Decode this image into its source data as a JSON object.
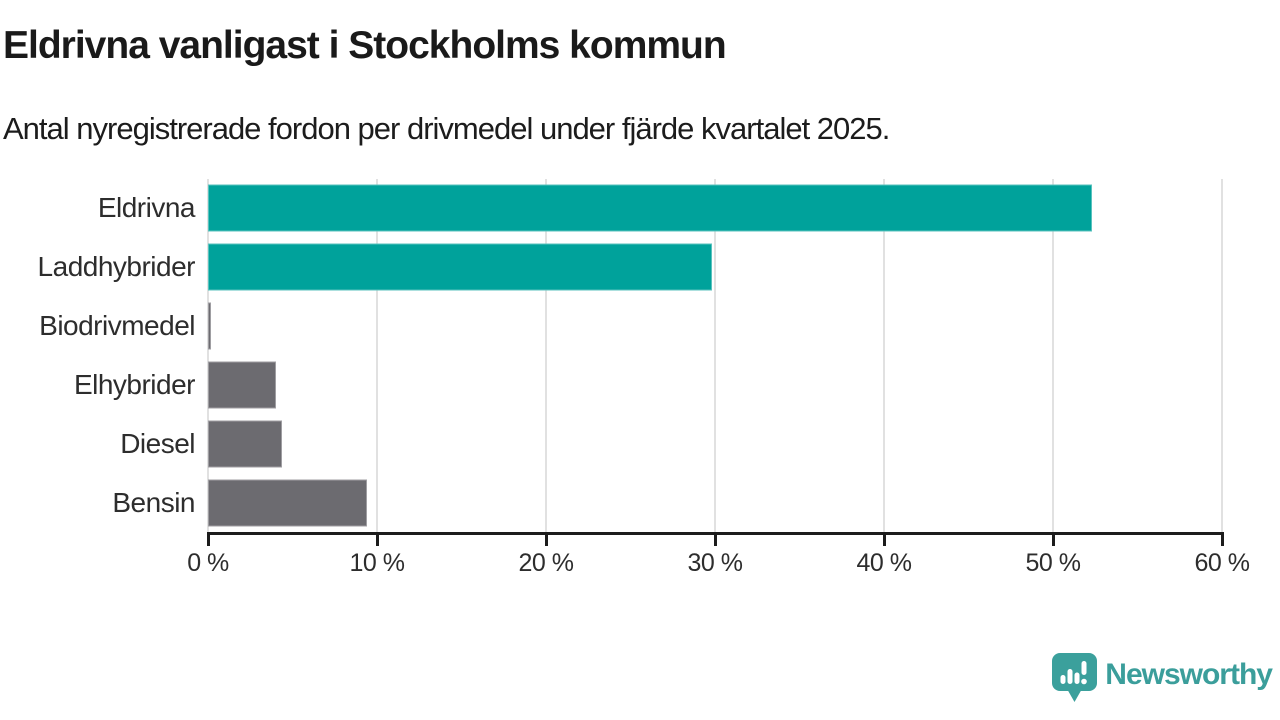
{
  "header": {
    "title": "Eldrivna vanligast i Stockholms kommun",
    "subtitle": "Antal nyregistrerade fordon per drivmedel under fjärde kvartalet 2025."
  },
  "chart_data": {
    "type": "bar",
    "orientation": "horizontal",
    "title": "Eldrivna vanligast i Stockholms kommun",
    "subtitle": "Antal nyregistrerade fordon per drivmedel under fjärde kvartalet 2025.",
    "categories": [
      "Eldrivna",
      "Laddhybrider",
      "Biodrivmedel",
      "Elhybrider",
      "Diesel",
      "Bensin"
    ],
    "values": [
      52.3,
      29.8,
      0.2,
      4.0,
      4.4,
      9.4
    ],
    "unit": "%",
    "bar_colors": [
      "#00a29b",
      "#00a29b",
      "#6c6b70",
      "#6c6b70",
      "#6c6b70",
      "#6c6b70"
    ],
    "xlabel": "",
    "ylabel": "",
    "xlim": [
      0,
      60
    ],
    "x_ticks": [
      0,
      10,
      20,
      30,
      40,
      50,
      60
    ],
    "x_tick_labels": [
      "0 %",
      "10 %",
      "20 %",
      "30 %",
      "40 %",
      "50 %",
      "60 %"
    ],
    "grid": true,
    "legend": false
  },
  "footer": {
    "brand": "Newsworthy",
    "brand_color": "#3b9e9b",
    "logo_icon": "newsworthy-speech-bubble-chart-icon"
  },
  "colors": {
    "accent_teal": "#00a29b",
    "neutral_gray": "#6c6b70",
    "gridline": "#e1e1e1",
    "axis": "#1c1c1c",
    "text": "#1a1a1a"
  }
}
